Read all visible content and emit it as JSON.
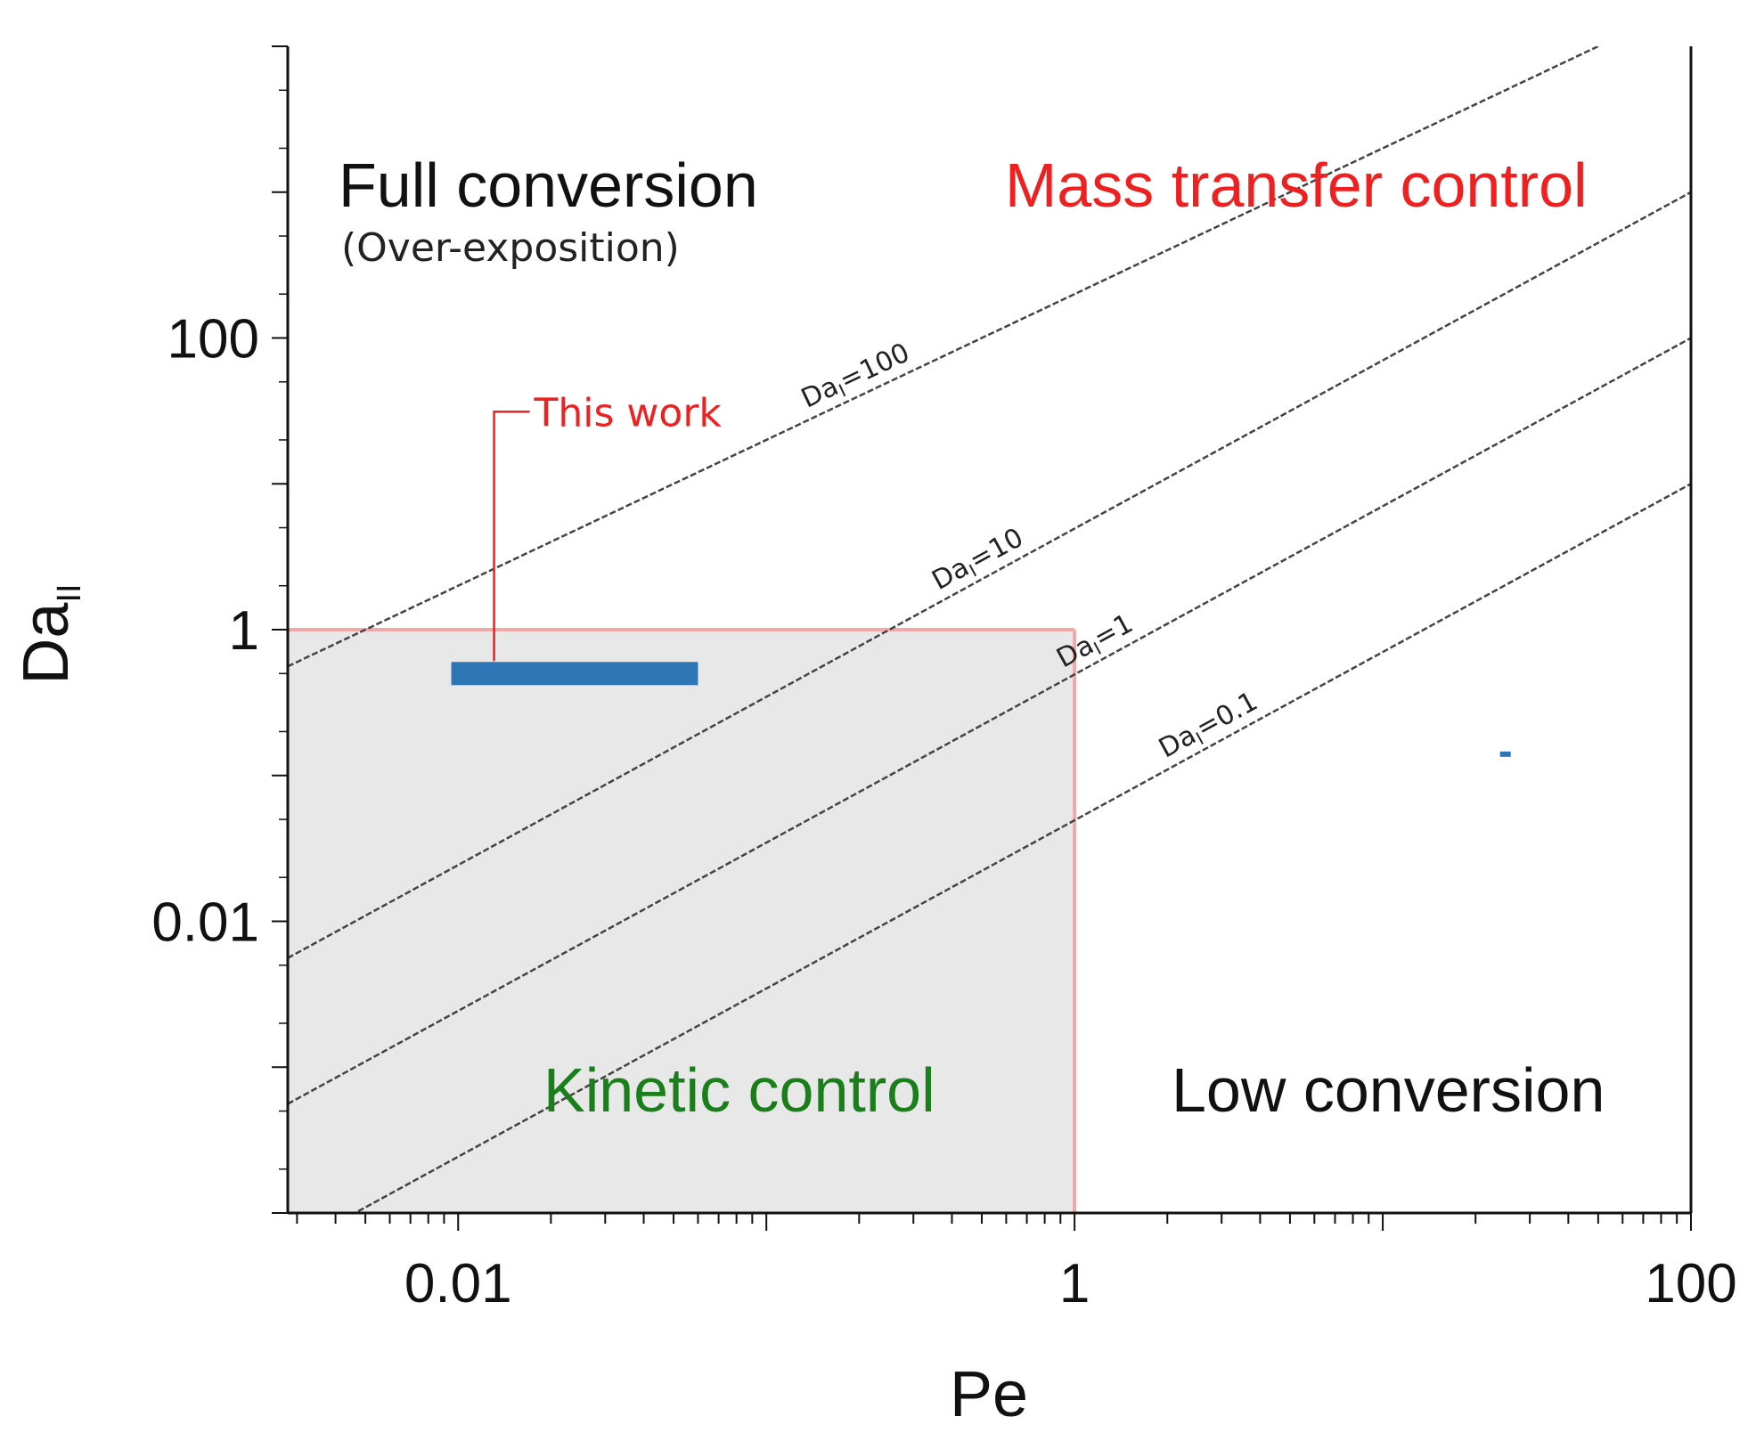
{
  "chart_data": {
    "type": "line",
    "xlabel": "Pe",
    "ylabel": {
      "main": "Da",
      "sub": "II"
    },
    "x_scale": "log",
    "y_scale": "log",
    "xlim": [
      0.0028,
      100
    ],
    "ylim": [
      0.0001,
      10000
    ],
    "x_ticks": [
      {
        "value": 0.01,
        "label": "0.01"
      },
      {
        "value": 1,
        "label": "1"
      },
      {
        "value": 100,
        "label": "100"
      }
    ],
    "y_ticks": [
      {
        "value": 0.01,
        "label": "0.01"
      },
      {
        "value": 1,
        "label": "1"
      },
      {
        "value": 100,
        "label": "100"
      }
    ],
    "grid": false,
    "series": [
      {
        "name": "DaI=100",
        "label_main": "Da",
        "label_sub": "I",
        "label_rest": "=100",
        "x": [
          0.0028,
          100
        ],
        "y": [
          0.56,
          20000
        ],
        "label_x": 0.2,
        "style": "dashed"
      },
      {
        "name": "DaI=10",
        "label_main": "Da",
        "label_sub": "I",
        "label_rest": "=10",
        "x": [
          0.0028,
          100
        ],
        "y": [
          0.0056,
          1000
        ],
        "label_x": 0.5,
        "style": "dashed"
      },
      {
        "name": "DaI=1",
        "label_main": "Da",
        "label_sub": "I",
        "label_rest": "=1",
        "x": [
          0.0028,
          100
        ],
        "y": [
          0.00056,
          100
        ],
        "label_x": 1.2,
        "style": "dashed"
      },
      {
        "name": "DaI=0.1",
        "label_main": "Da",
        "label_sub": "I",
        "label_rest": "=0.1",
        "x": [
          0.0028,
          100
        ],
        "y": [
          5.6e-05,
          10
        ],
        "label_x": 2.8,
        "style": "dashed"
      }
    ],
    "kinetic_region": {
      "x": [
        0.0028,
        1
      ],
      "y": [
        0.0001,
        1
      ],
      "fill": "#e8e8e8",
      "border": "#f0a8a8"
    },
    "this_work": {
      "label": "This work",
      "x": [
        0.0095,
        0.06
      ],
      "y": 0.5,
      "color": "#2e75b6",
      "label_color": "#ee2020"
    },
    "small_marker": {
      "x": 25,
      "y": 0.14,
      "color": "#2e75b6"
    },
    "regions": [
      {
        "key": "full",
        "text": "Full conversion",
        "sub": "(Over-exposition)",
        "color": "#111111"
      },
      {
        "key": "mass",
        "text": "Mass transfer control",
        "color": "#ee2020"
      },
      {
        "key": "kinetic",
        "text": "Kinetic control",
        "color": "#1a7f1a"
      },
      {
        "key": "low",
        "text": "Low conversion",
        "color": "#111111"
      }
    ]
  }
}
